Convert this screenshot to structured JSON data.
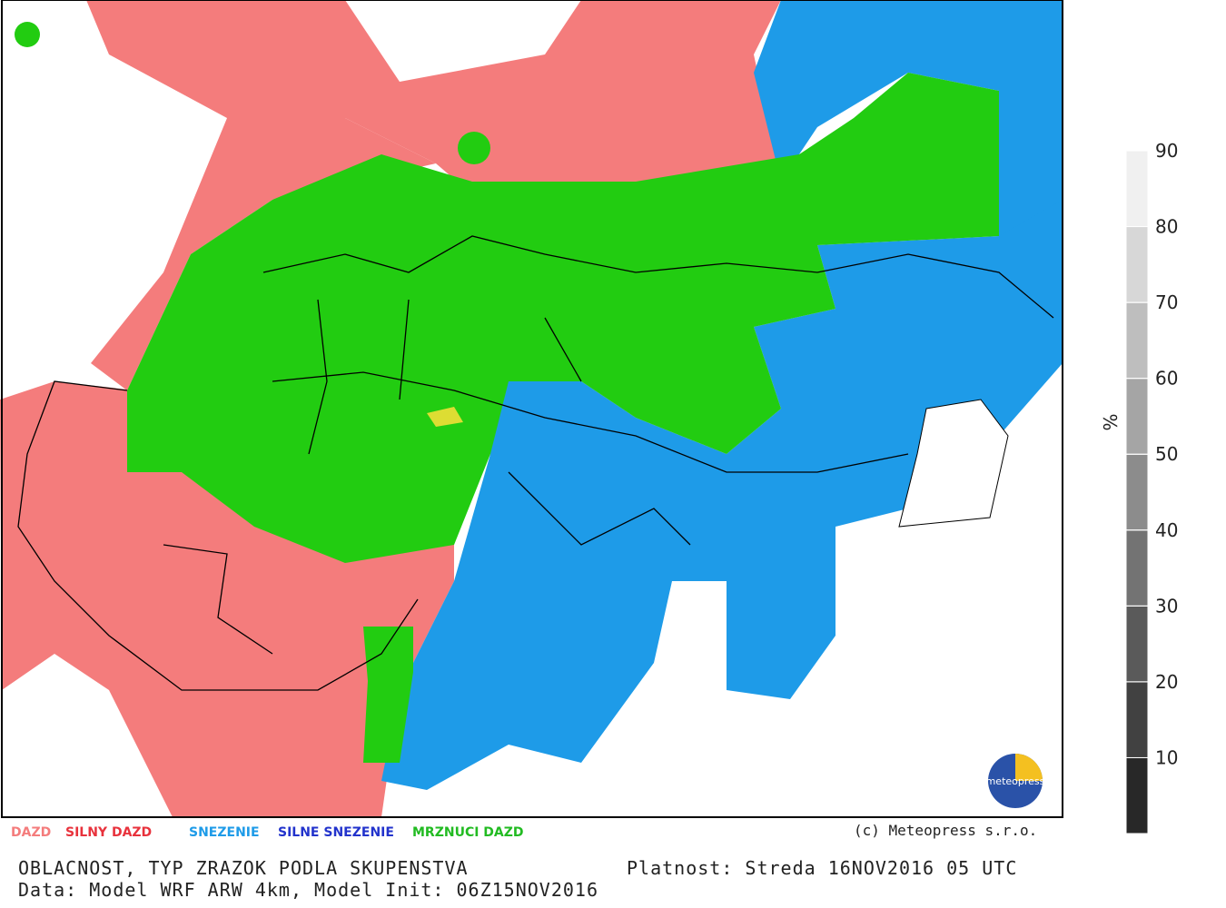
{
  "map": {
    "copyright": "(c) Meteopress s.r.o.",
    "logo": "meteopress"
  },
  "legend": [
    {
      "label": "DAZD",
      "color": "#f47c7c"
    },
    {
      "label": "SILNY DAZD",
      "color": "#e8323c"
    },
    {
      "label": "SNEZENIE",
      "color": "#1e9be8"
    },
    {
      "label": "SILNE SNEZENIE",
      "color": "#2233cc"
    },
    {
      "label": "MRZNUCI DAZD",
      "color": "#22bb22"
    }
  ],
  "colorbar": {
    "unit": "%",
    "range": [
      0,
      90
    ],
    "ticks": [
      10,
      20,
      30,
      40,
      50,
      60,
      70,
      80,
      90
    ]
  },
  "footer": {
    "title": "OBLACNOST, TYP ZRAZOK PODLA SKUPENSTVA",
    "validity": "Platnost: Streda 16NOV2016 05 UTC",
    "data": "Data: Model WRF ARW 4km, Model Init: 06Z15NOV2016"
  }
}
